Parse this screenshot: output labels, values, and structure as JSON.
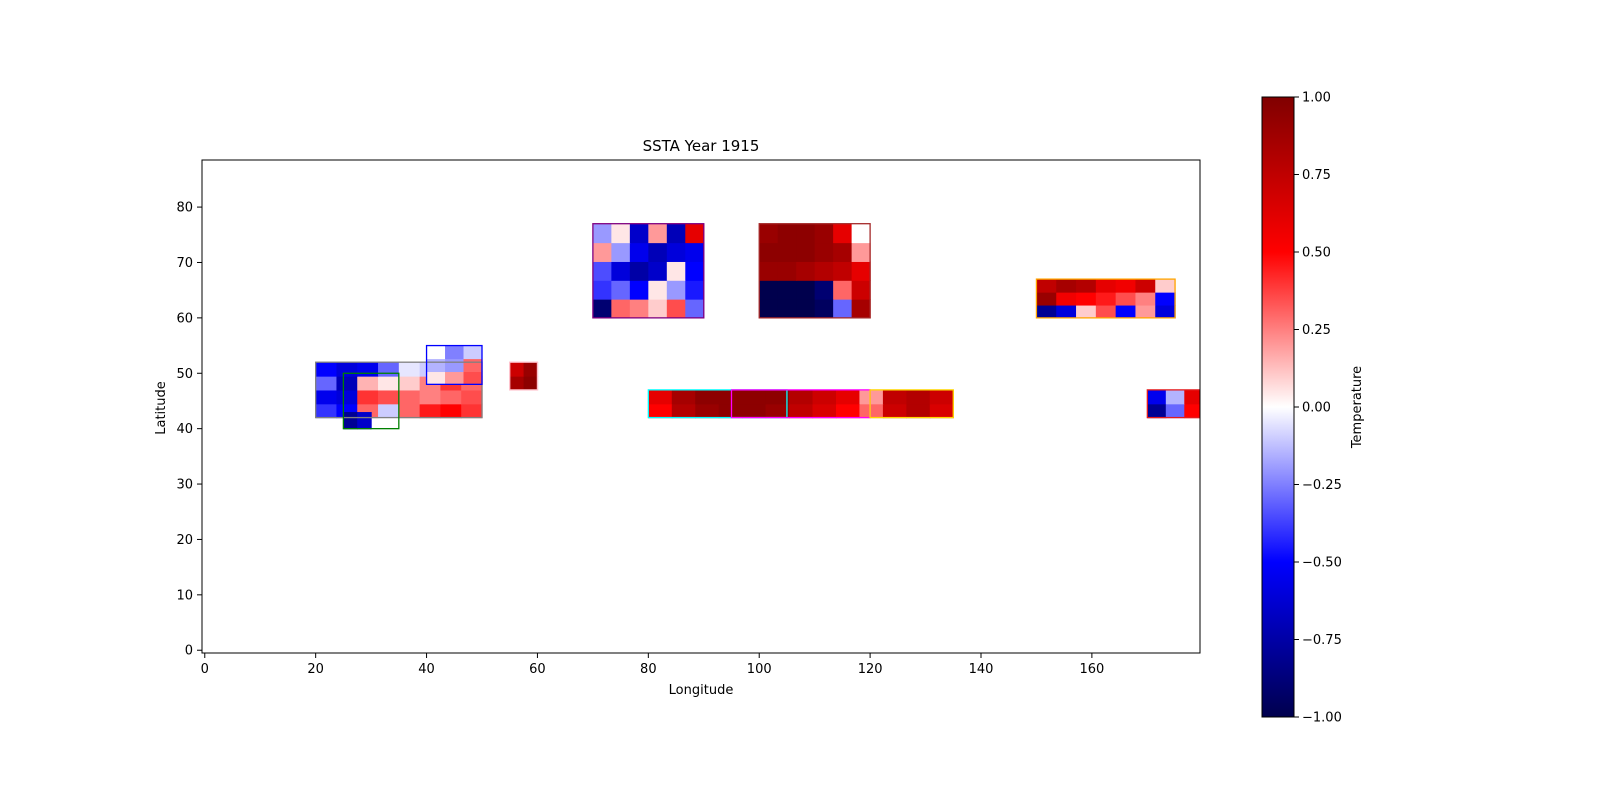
{
  "chart_data": {
    "type": "heatmap",
    "title": "SSTA Year 1915",
    "xlabel": "Longitude",
    "ylabel": "Latitude",
    "xlim": [
      -0.5,
      179.5
    ],
    "ylim": [
      -0.5,
      88.5
    ],
    "xticks": [
      0,
      20,
      40,
      60,
      80,
      100,
      120,
      140,
      160
    ],
    "yticks": [
      0,
      10,
      20,
      30,
      40,
      50,
      60,
      70,
      80
    ],
    "grid": false,
    "colormap": "seismic",
    "colorbar": {
      "label": "Temperature",
      "range": [
        -1.0,
        1.0
      ],
      "ticks": [
        "1.00",
        "0.75",
        "0.50",
        "0.25",
        "0.00",
        "−0.25",
        "−0.50",
        "−0.75",
        "−1.00"
      ],
      "tick_values": [
        1.0,
        0.75,
        0.5,
        0.25,
        0.0,
        -0.25,
        -0.5,
        -0.75,
        -1.0
      ]
    },
    "regions": [
      {
        "lon": [
          20,
          50
        ],
        "lat": [
          42,
          52
        ],
        "edge_color": "#808080"
      },
      {
        "lon": [
          25,
          35
        ],
        "lat": [
          40,
          50
        ],
        "edge_color": "#008000"
      },
      {
        "lon": [
          40,
          50
        ],
        "lat": [
          48,
          55
        ],
        "edge_color": "#0000ff"
      },
      {
        "lon": [
          55,
          60
        ],
        "lat": [
          47,
          52
        ],
        "edge_color": "#ffc0cb"
      },
      {
        "lon": [
          70,
          90
        ],
        "lat": [
          60,
          77
        ],
        "edge_color": "#800080"
      },
      {
        "lon": [
          100,
          120
        ],
        "lat": [
          60,
          77
        ],
        "edge_color": "#a52a2a"
      },
      {
        "lon": [
          80,
          105
        ],
        "lat": [
          42,
          47
        ],
        "edge_color": "#00ffff"
      },
      {
        "lon": [
          95,
          120
        ],
        "lat": [
          42,
          47
        ],
        "edge_color": "#ff00ff"
      },
      {
        "lon": [
          120,
          135
        ],
        "lat": [
          42,
          47
        ],
        "edge_color": "#ffd700"
      },
      {
        "lon": [
          150,
          175
        ],
        "lat": [
          60,
          67
        ],
        "edge_color": "#ffa500"
      },
      {
        "lon": [
          170,
          180
        ],
        "lat": [
          42,
          47
        ],
        "edge_color": "#e41a1c"
      }
    ],
    "anomaly_blocks": [
      {
        "lon": [
          20,
          50
        ],
        "lat": [
          42,
          52
        ],
        "values": [
          [
            -0.4,
            -0.5,
            0.3,
            -0.1,
            0.3,
            0.45,
            0.5,
            0.4
          ],
          [
            -0.55,
            -0.6,
            0.4,
            0.35,
            0.3,
            0.25,
            0.3,
            0.35
          ],
          [
            -0.3,
            -0.7,
            0.15,
            0.05,
            0.1,
            0.25,
            0.4,
            0.3
          ],
          [
            -0.5,
            -0.6,
            -0.55,
            -0.3,
            -0.05,
            -0.1,
            -0.2,
            0.1
          ]
        ]
      },
      {
        "lon": [
          25,
          30
        ],
        "lat": [
          40,
          43
        ],
        "values": [
          [
            -0.8,
            -0.65
          ]
        ]
      },
      {
        "lon": [
          40,
          50
        ],
        "lat": [
          48,
          55
        ],
        "values": [
          [
            0.05,
            0.2,
            0.35
          ],
          [
            -0.15,
            -0.2,
            0.3
          ],
          [
            0.0,
            -0.25,
            -0.1
          ]
        ]
      },
      {
        "lon": [
          55,
          60
        ],
        "lat": [
          47,
          52
        ],
        "values": [
          [
            0.85,
            0.95
          ],
          [
            0.7,
            0.9
          ]
        ]
      },
      {
        "lon": [
          70,
          90
        ],
        "lat": [
          60,
          77
        ],
        "values": [
          [
            -0.9,
            0.3,
            0.25,
            0.1,
            0.35,
            -0.3
          ],
          [
            -0.4,
            -0.3,
            -0.5,
            0.05,
            -0.2,
            -0.45
          ],
          [
            -0.35,
            -0.6,
            -0.75,
            -0.65,
            0.05,
            -0.5
          ],
          [
            0.2,
            -0.2,
            -0.55,
            -0.7,
            -0.6,
            -0.55
          ],
          [
            -0.2,
            0.05,
            -0.65,
            0.2,
            -0.7,
            0.6
          ]
        ]
      },
      {
        "lon": [
          100,
          120
        ],
        "lat": [
          60,
          77
        ],
        "values": [
          [
            -1.0,
            -1.0,
            -1.0,
            -0.95,
            -0.3,
            0.85
          ],
          [
            -1.0,
            -1.0,
            -1.0,
            -0.9,
            0.3,
            0.7
          ],
          [
            0.9,
            0.9,
            0.85,
            0.8,
            0.75,
            0.6
          ],
          [
            0.95,
            0.95,
            0.95,
            0.9,
            0.85,
            0.2
          ],
          [
            0.9,
            0.95,
            0.95,
            0.9,
            0.6,
            0.0
          ]
        ]
      },
      {
        "lon": [
          80,
          135
        ],
        "lat": [
          42,
          47
        ],
        "values": [
          [
            0.5,
            0.8,
            0.9,
            0.95,
            0.95,
            0.9,
            0.75,
            0.65,
            0.5,
            0.3,
            0.7,
            0.8,
            0.65
          ],
          [
            0.6,
            0.85,
            0.95,
            0.95,
            0.95,
            0.95,
            0.8,
            0.7,
            0.6,
            0.2,
            0.75,
            0.8,
            0.7
          ]
        ]
      },
      {
        "lon": [
          150,
          175
        ],
        "lat": [
          60,
          67
        ],
        "values": [
          [
            -0.8,
            -0.6,
            0.1,
            0.35,
            -0.5,
            0.2,
            -0.6
          ],
          [
            0.9,
            0.55,
            0.5,
            0.45,
            0.35,
            0.25,
            -0.5
          ],
          [
            0.75,
            0.85,
            0.8,
            0.6,
            0.55,
            0.7,
            0.1
          ]
        ]
      },
      {
        "lon": [
          170,
          180
        ],
        "lat": [
          42,
          47
        ],
        "values": [
          [
            -0.8,
            -0.3,
            0.5
          ],
          [
            -0.55,
            -0.15,
            0.6
          ]
        ]
      }
    ]
  }
}
